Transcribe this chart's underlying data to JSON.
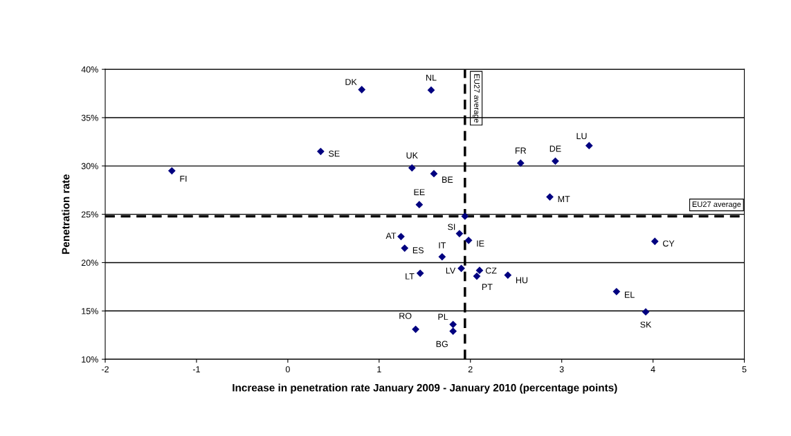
{
  "chart_data": {
    "type": "scatter",
    "xlabel": "Increase in penetration rate January 2009 - January 2010 (percentage points)",
    "ylabel": "Penetration rate",
    "x": [
      0.81,
      1.57,
      0.36,
      -1.27,
      1.36,
      1.6,
      1.44,
      2.55,
      2.93,
      3.3,
      2.87,
      1.94,
      1.24,
      1.88,
      1.98,
      1.28,
      1.69,
      4.02,
      1.9,
      2.1,
      2.07,
      1.45,
      2.41,
      3.6,
      3.92,
      1.4,
      1.81,
      1.81
    ],
    "series": [
      {
        "color": "#000080",
        "values": [
          37.9,
          37.85,
          31.5,
          29.5,
          29.8,
          29.2,
          26.0,
          30.3,
          30.5,
          32.1,
          26.8,
          24.8,
          22.7,
          23.0,
          22.3,
          21.5,
          20.6,
          22.2,
          19.4,
          19.2,
          18.6,
          18.9,
          18.7,
          17.0,
          14.9,
          13.1,
          13.6,
          12.9
        ]
      }
    ],
    "annotations": [
      {
        "text": "DK",
        "x": 0.81,
        "y": 37.9
      },
      {
        "text": "NL",
        "x": 1.57,
        "y": 37.85
      },
      {
        "text": "SE",
        "x": 0.36,
        "y": 31.5
      },
      {
        "text": "FI",
        "x": -1.27,
        "y": 29.5
      },
      {
        "text": "UK",
        "x": 1.36,
        "y": 29.8
      },
      {
        "text": "BE",
        "x": 1.6,
        "y": 29.2
      },
      {
        "text": "EE",
        "x": 1.44,
        "y": 26.0
      },
      {
        "text": "FR",
        "x": 2.55,
        "y": 30.3
      },
      {
        "text": "DE",
        "x": 2.93,
        "y": 30.5
      },
      {
        "text": "LU",
        "x": 3.3,
        "y": 32.1
      },
      {
        "text": "MT",
        "x": 2.87,
        "y": 26.8
      },
      {
        "text": "AT",
        "x": 1.24,
        "y": 22.7
      },
      {
        "text": "SI",
        "x": 1.88,
        "y": 23.0
      },
      {
        "text": "IE",
        "x": 1.98,
        "y": 22.3
      },
      {
        "text": "ES",
        "x": 1.28,
        "y": 21.5
      },
      {
        "text": "IT",
        "x": 1.69,
        "y": 20.6
      },
      {
        "text": "CY",
        "x": 4.02,
        "y": 22.2
      },
      {
        "text": "LV",
        "x": 1.9,
        "y": 19.4
      },
      {
        "text": "CZ",
        "x": 2.1,
        "y": 19.2
      },
      {
        "text": "PT",
        "x": 2.07,
        "y": 18.6
      },
      {
        "text": "LT",
        "x": 1.45,
        "y": 18.9
      },
      {
        "text": "HU",
        "x": 2.41,
        "y": 18.7
      },
      {
        "text": "EL",
        "x": 3.6,
        "y": 17.0
      },
      {
        "text": "SK",
        "x": 3.92,
        "y": 14.9
      },
      {
        "text": "RO",
        "x": 1.4,
        "y": 13.1
      },
      {
        "text": "PL",
        "x": 1.81,
        "y": 13.6
      },
      {
        "text": "BG",
        "x": 1.81,
        "y": 12.9
      }
    ],
    "ref_lines": [
      {
        "axis": "x",
        "value": 1.94,
        "label": "EU27 average",
        "color": "#000000",
        "line_style": "dashed"
      },
      {
        "axis": "y",
        "value": 24.8,
        "label": "EU27 average",
        "color": "#000000",
        "line_style": "dashed"
      }
    ],
    "xlim": [
      -2,
      5
    ],
    "xticks": [
      -2,
      -1,
      0,
      1,
      2,
      3,
      4,
      5
    ],
    "ylim": [
      10,
      40
    ],
    "yticks": [
      {
        "value": 10,
        "label": "10%"
      },
      {
        "value": 15,
        "label": "15%"
      },
      {
        "value": 20,
        "label": "20%"
      },
      {
        "value": 25,
        "label": "25%"
      },
      {
        "value": 30,
        "label": "30%"
      },
      {
        "value": 35,
        "label": "35%"
      },
      {
        "value": 40,
        "label": "40%"
      }
    ],
    "grid": "y",
    "marker": "diamond",
    "legend": false
  }
}
